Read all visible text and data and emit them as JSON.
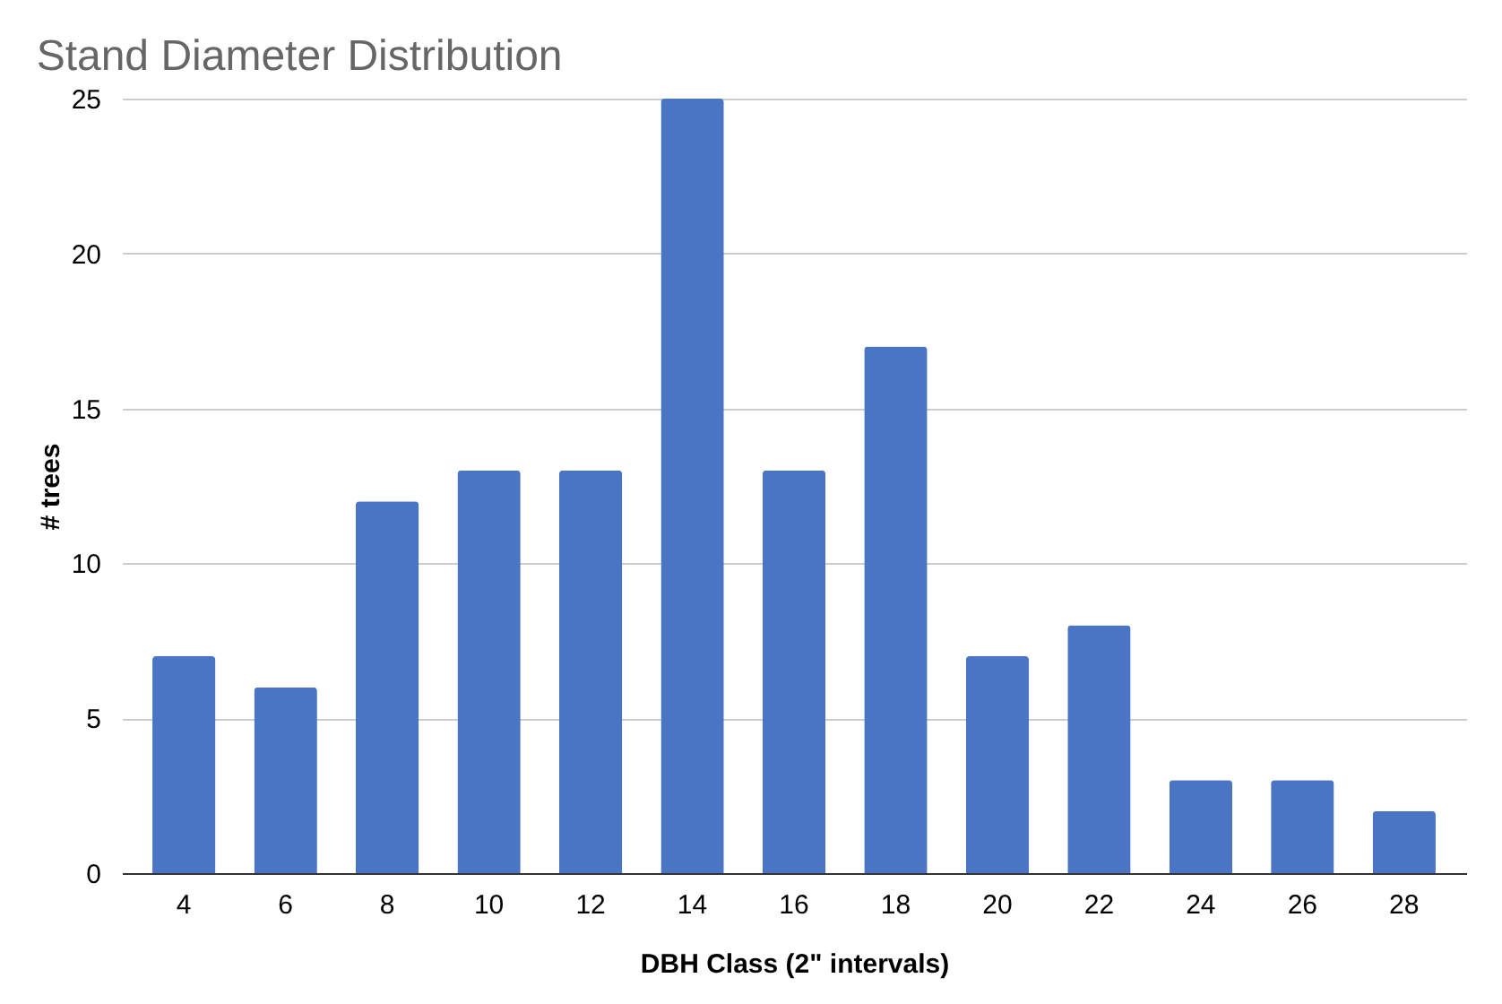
{
  "chart_data": {
    "type": "bar",
    "title": "Stand Diameter Distribution",
    "xlabel": "DBH Class (2\" intervals)",
    "ylabel": "# trees",
    "categories": [
      "4",
      "6",
      "8",
      "10",
      "12",
      "14",
      "16",
      "18",
      "20",
      "22",
      "24",
      "26",
      "28"
    ],
    "values": [
      7,
      6,
      12,
      13,
      13,
      25,
      13,
      17,
      7,
      8,
      3,
      3,
      2
    ],
    "color": "#4a74c4",
    "ylim": [
      0,
      25
    ],
    "yticks": [
      0,
      5,
      10,
      15,
      20,
      25
    ],
    "grid": "y"
  }
}
